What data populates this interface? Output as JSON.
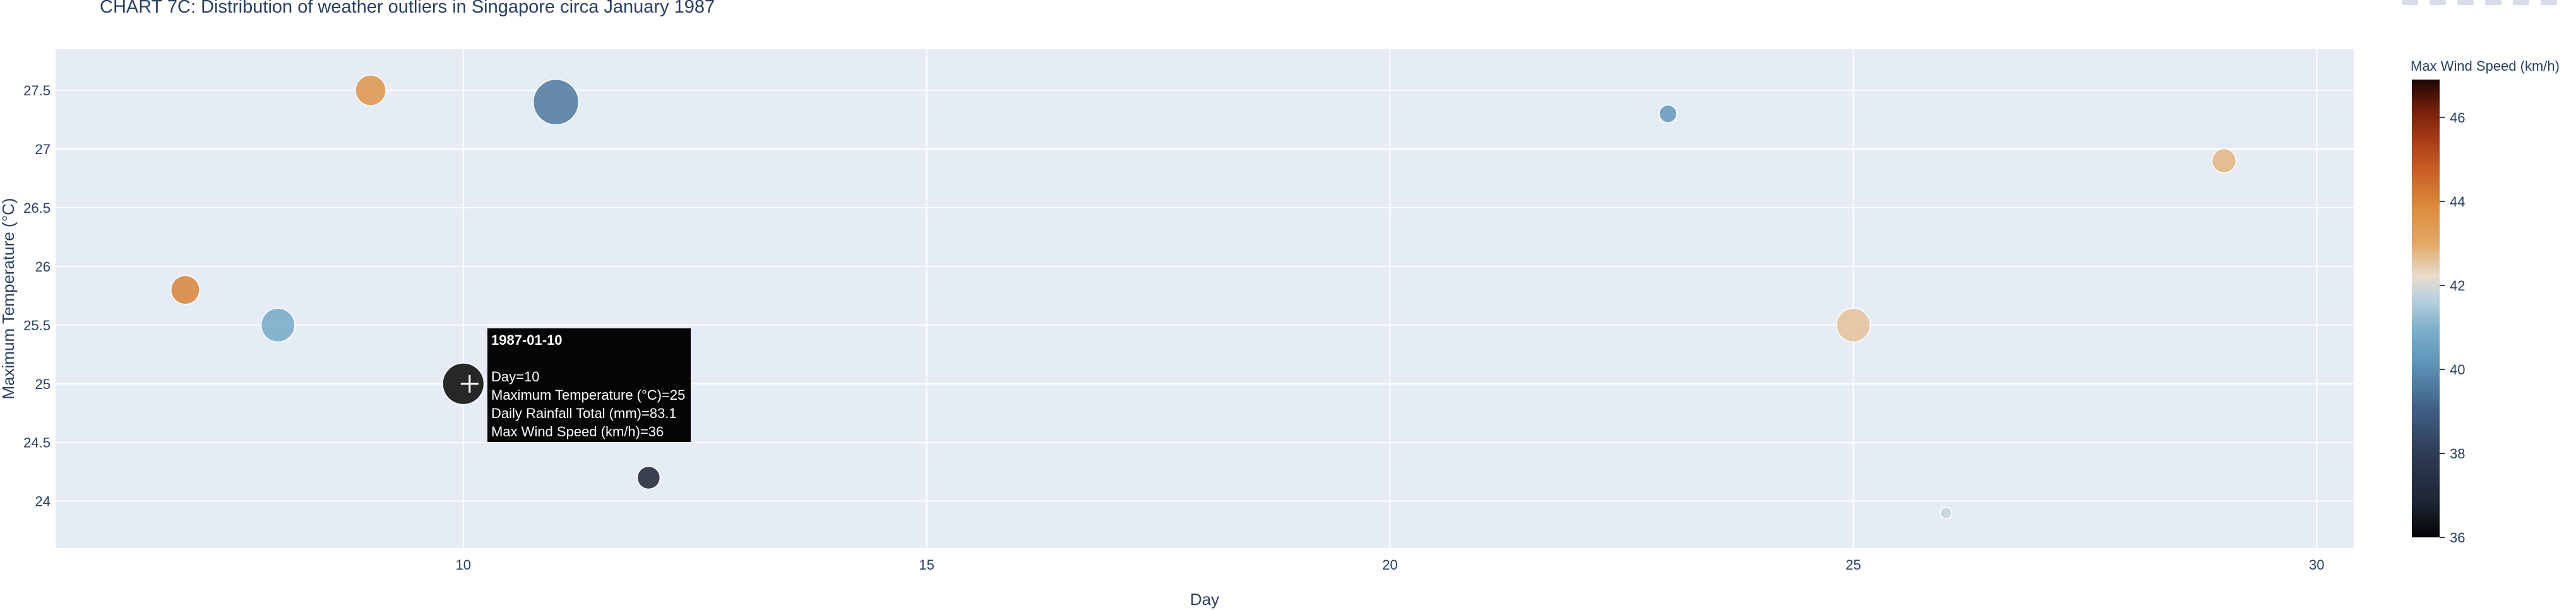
{
  "chart_data": {
    "type": "scatter",
    "title": "CHART 7C: Distribution of weather outliers in Singapore circa January 1987",
    "xlabel": "Day",
    "ylabel": "Maximum Temperature (°C)",
    "xlim": [
      5.6,
      30.4
    ],
    "ylim": [
      23.6,
      27.85
    ],
    "x_ticks": [
      10,
      15,
      20,
      25,
      30
    ],
    "y_ticks": [
      24,
      24.5,
      25,
      25.5,
      26,
      26.5,
      27,
      27.5
    ],
    "size_field": "Daily Rainfall Total (mm)",
    "color_field": "Max Wind Speed (km/h)",
    "points": [
      {
        "x": 7,
        "y": 25.8,
        "wind": 44.0,
        "rain": 40
      },
      {
        "x": 8,
        "y": 25.5,
        "wind": 40.8,
        "rain": 55
      },
      {
        "x": 9,
        "y": 27.5,
        "wind": 43.6,
        "rain": 45
      },
      {
        "x": 10,
        "y": 25.0,
        "wind": 36.0,
        "rain": 83.1
      },
      {
        "x": 11,
        "y": 27.4,
        "wind": 39.6,
        "rain": 100
      },
      {
        "x": 12,
        "y": 24.2,
        "wind": 36.8,
        "rain": 25
      },
      {
        "x": 23,
        "y": 27.3,
        "wind": 40.3,
        "rain": 15
      },
      {
        "x": 25,
        "y": 25.5,
        "wind": 42.6,
        "rain": 55
      },
      {
        "x": 26,
        "y": 23.9,
        "wind": 41.8,
        "rain": 5
      },
      {
        "x": 29,
        "y": 26.9,
        "wind": 42.8,
        "rain": 28
      }
    ],
    "colorbar": {
      "title": "Max Wind Speed (km/h)",
      "range": [
        36,
        46.9
      ],
      "ticks": [
        36,
        38,
        40,
        42,
        44,
        46
      ],
      "colorscale": [
        [
          0.0,
          "#050505"
        ],
        [
          0.08,
          "#1e2536"
        ],
        [
          0.18,
          "#2e3b55"
        ],
        [
          0.28,
          "#3f5f86"
        ],
        [
          0.38,
          "#5f93b8"
        ],
        [
          0.45,
          "#7aaecb"
        ],
        [
          0.52,
          "#b8d0dd"
        ],
        [
          0.57,
          "#e8dccb"
        ],
        [
          0.64,
          "#e3a969"
        ],
        [
          0.72,
          "#dd8c3d"
        ],
        [
          0.8,
          "#c95f26"
        ],
        [
          0.87,
          "#a83a16"
        ],
        [
          0.94,
          "#6e1d0b"
        ],
        [
          1.0,
          "#1a0504"
        ]
      ]
    },
    "hover": {
      "date": "1987-01-10",
      "lines": [
        "Day=10",
        "Maximum Temperature (°C)=25",
        "Daily Rainfall Total (mm)=83.1",
        "Max Wind Speed (km/h)=36"
      ]
    },
    "plot_bg": "#e5ecf6",
    "grid": true
  }
}
